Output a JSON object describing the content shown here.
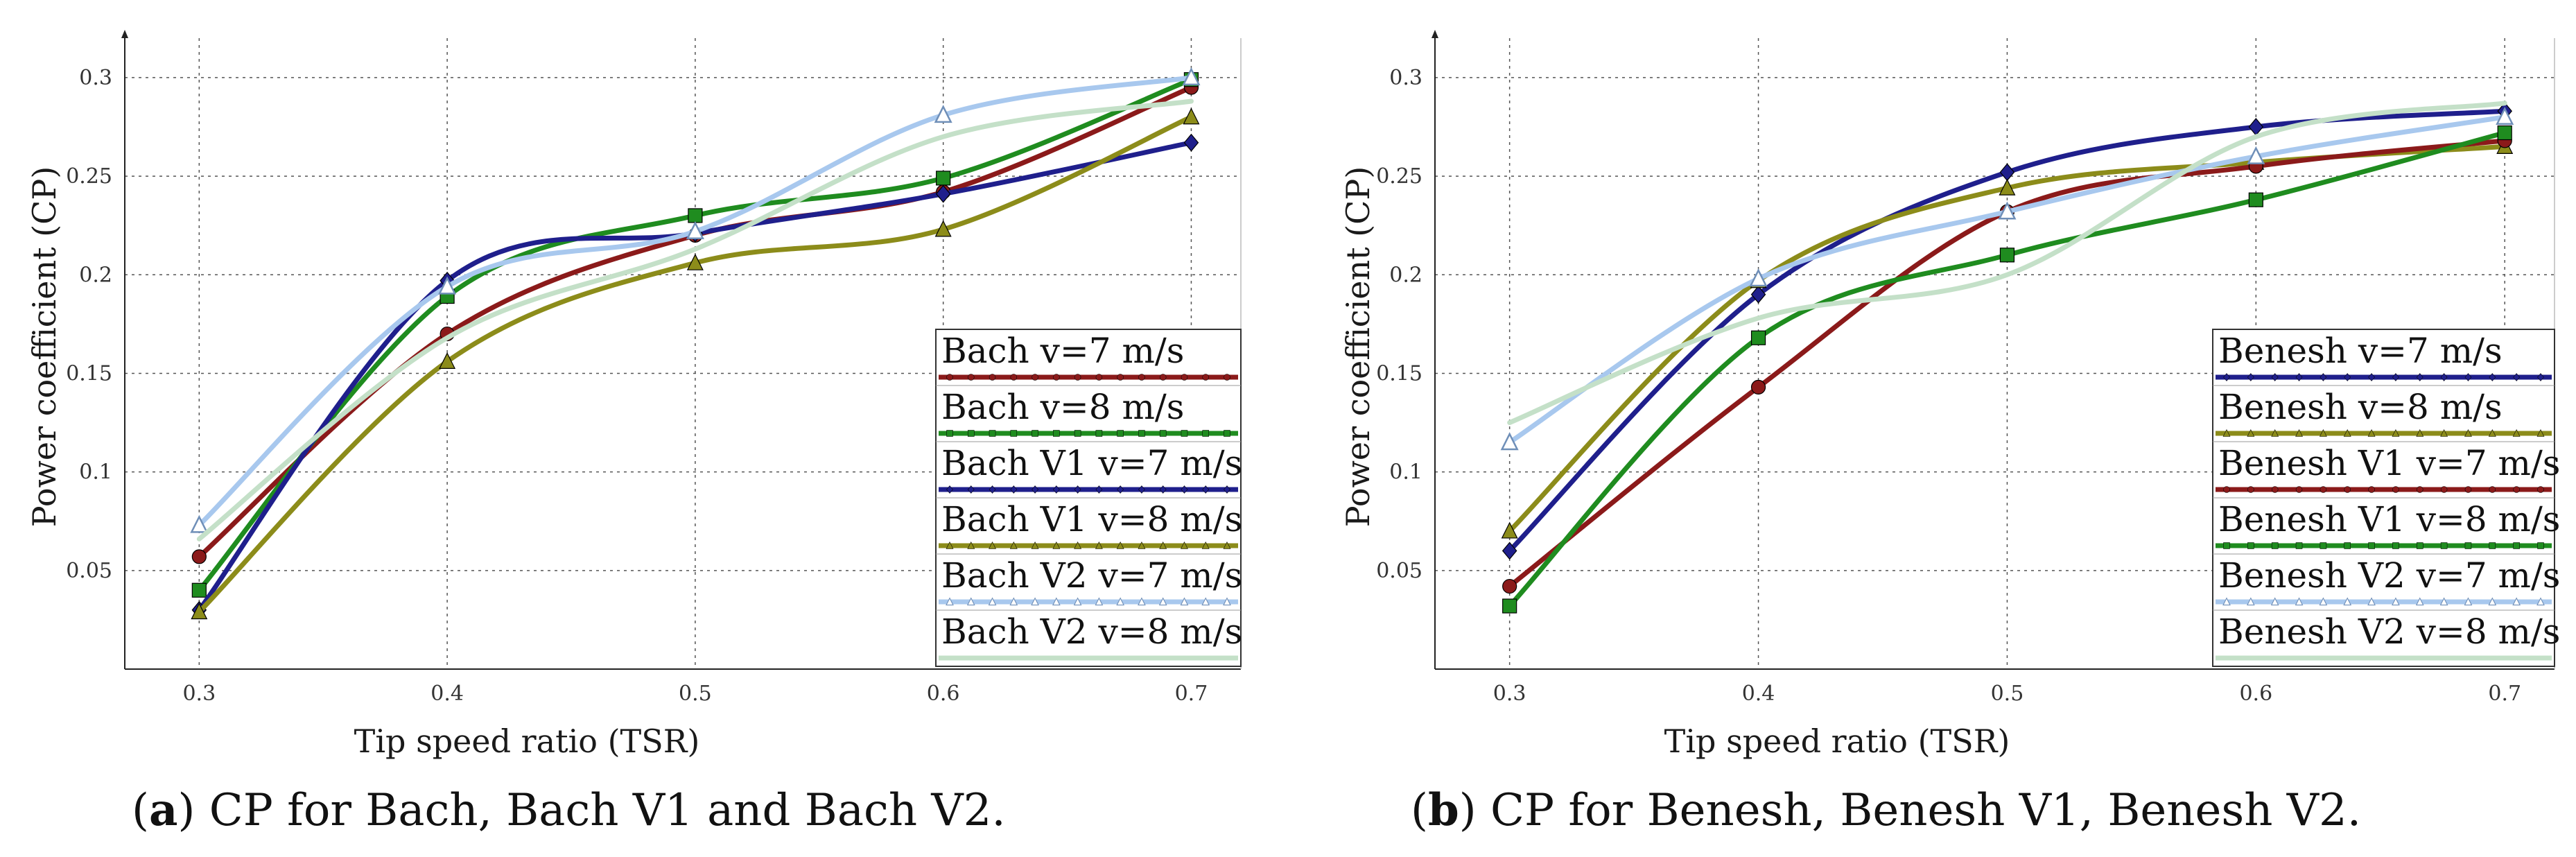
{
  "chart_data": [
    {
      "type": "line",
      "caption_letter": "a",
      "caption_text": "CP for Bach, Bach V1 and Bach V2.",
      "xlabel": "Tip speed ratio (TSR)",
      "ylabel": "Power coefficient (CP)",
      "x": [
        0.3,
        0.4,
        0.5,
        0.6,
        0.7
      ],
      "xlim": [
        0.27,
        0.72
      ],
      "ylim": [
        0.0,
        0.32
      ],
      "xticks": [
        "0.3",
        "0.4",
        "0.5",
        "0.6",
        "0.7"
      ],
      "yticks": [
        "0.05",
        "0.1",
        "0.15",
        "0.2",
        "0.25",
        "0.3"
      ],
      "grid": true,
      "legend_position": "bottom-right",
      "series": [
        {
          "name": "Bach v=7 m/s",
          "color": "#8b1a1a",
          "marker": "circle",
          "values": [
            0.057,
            0.17,
            0.22,
            0.242,
            0.295
          ]
        },
        {
          "name": "Bach v=8 m/s",
          "color": "#1f8c1f",
          "marker": "square",
          "values": [
            0.04,
            0.189,
            0.23,
            0.249,
            0.299
          ]
        },
        {
          "name": "Bach V1 v=7 m/s",
          "color": "#1f1f8c",
          "marker": "diamond",
          "values": [
            0.03,
            0.197,
            0.221,
            0.241,
            0.267
          ]
        },
        {
          "name": "Bach V1 v=8 m/s",
          "color": "#8c8c1a",
          "marker": "triangle",
          "values": [
            0.029,
            0.156,
            0.206,
            0.223,
            0.28
          ]
        },
        {
          "name": "Bach V2 v=7 m/s",
          "color": "#a8c8ee",
          "marker": "triangle-open",
          "values": [
            0.073,
            0.194,
            0.222,
            0.281,
            0.3
          ]
        },
        {
          "name": "Bach V2 v=8 m/s",
          "color": "#c4e0c8",
          "marker": "none",
          "values": [
            0.066,
            0.168,
            0.213,
            0.27,
            0.288
          ]
        }
      ]
    },
    {
      "type": "line",
      "caption_letter": "b",
      "caption_text": "CP for Benesh, Benesh V1, Benesh V2.",
      "xlabel": "Tip speed ratio (TSR)",
      "ylabel": "Power coefficient (CP)",
      "x": [
        0.3,
        0.4,
        0.5,
        0.6,
        0.7
      ],
      "xlim": [
        0.27,
        0.72
      ],
      "ylim": [
        0.0,
        0.32
      ],
      "xticks": [
        "0.3",
        "0.4",
        "0.5",
        "0.6",
        "0.7"
      ],
      "yticks": [
        "0.05",
        "0.1",
        "0.15",
        "0.2",
        "0.25",
        "0.3"
      ],
      "grid": true,
      "legend_position": "bottom-right",
      "series": [
        {
          "name": "Benesh v=7 m/s",
          "color": "#1f1f8c",
          "marker": "diamond",
          "values": [
            0.06,
            0.19,
            0.252,
            0.275,
            0.283
          ]
        },
        {
          "name": "Benesh v=8 m/s",
          "color": "#8c8c1a",
          "marker": "triangle",
          "values": [
            0.07,
            0.197,
            0.244,
            0.257,
            0.265
          ]
        },
        {
          "name": "Benesh V1 v=7 m/s",
          "color": "#8b1a1a",
          "marker": "circle",
          "values": [
            0.042,
            0.143,
            0.232,
            0.255,
            0.268
          ]
        },
        {
          "name": "Benesh V1 v=8 m/s",
          "color": "#1f8c1f",
          "marker": "square",
          "values": [
            0.032,
            0.168,
            0.21,
            0.238,
            0.272
          ]
        },
        {
          "name": "Benesh V2 v=7 m/s",
          "color": "#a8c8ee",
          "marker": "triangle-open",
          "values": [
            0.115,
            0.198,
            0.232,
            0.26,
            0.28
          ]
        },
        {
          "name": "Benesh V2 v=8 m/s",
          "color": "#c4e0c8",
          "marker": "none",
          "values": [
            0.125,
            0.178,
            0.2,
            0.27,
            0.287
          ]
        }
      ]
    }
  ]
}
